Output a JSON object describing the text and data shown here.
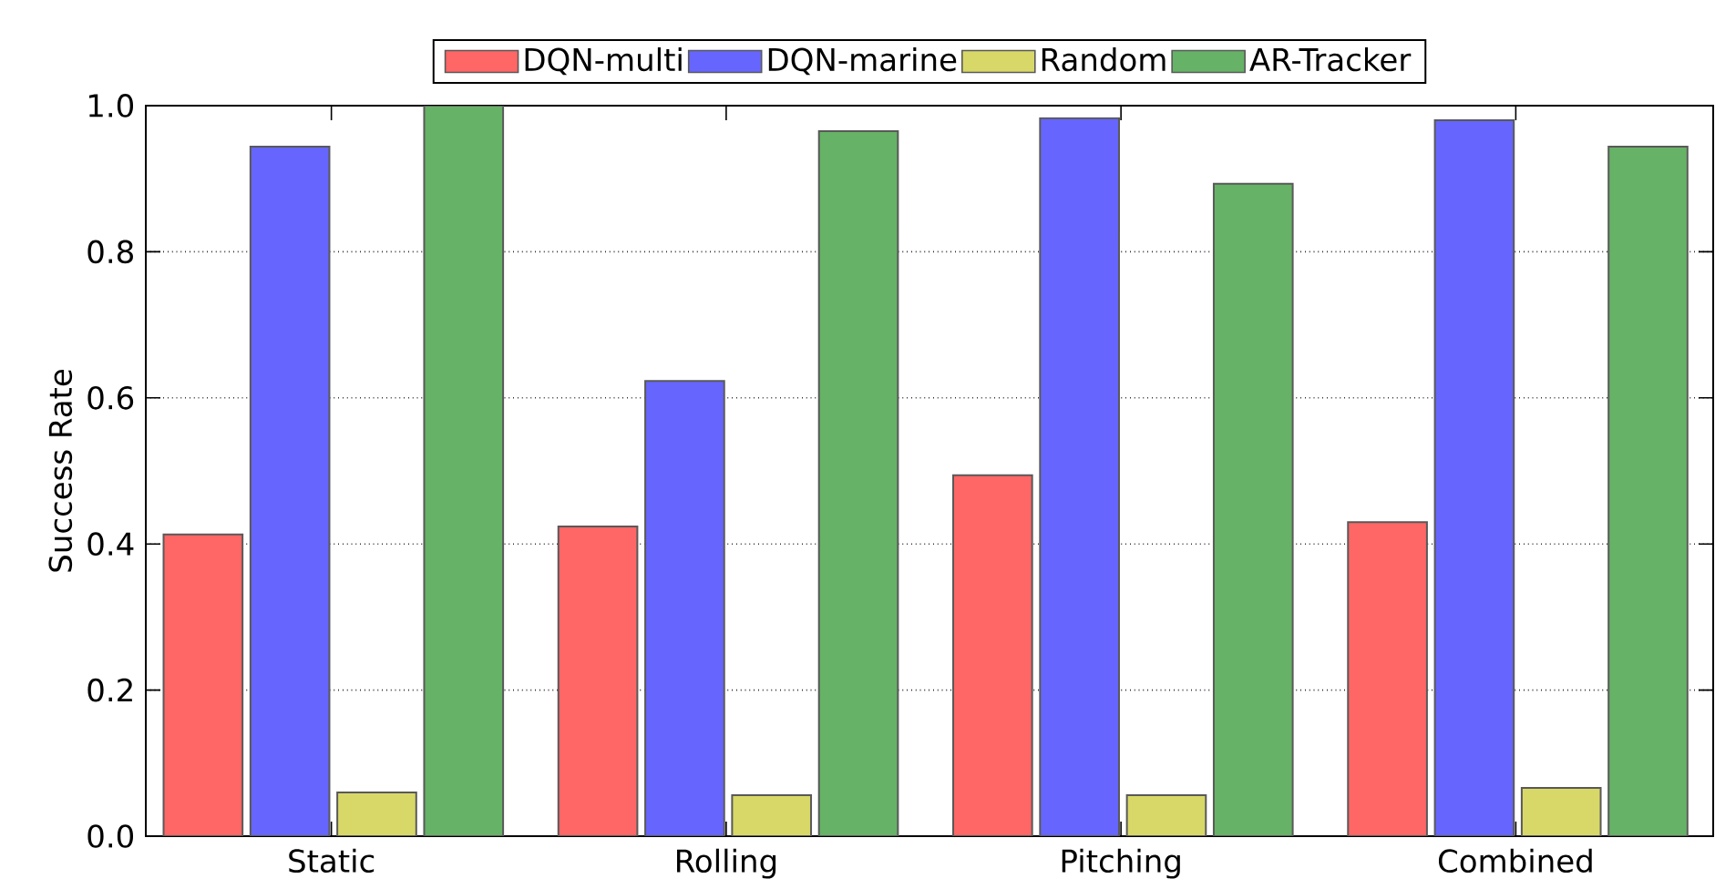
{
  "chart_data": {
    "type": "bar",
    "ylabel": "Success Rate",
    "categories": [
      "Static",
      "Rolling",
      "Pitching",
      "Combined"
    ],
    "series": [
      {
        "name": "DQN-multi",
        "color": "#ff6666",
        "values": [
          0.413,
          0.424,
          0.494,
          0.43
        ]
      },
      {
        "name": "DQN-marine",
        "color": "#6666ff",
        "values": [
          0.944,
          0.623,
          0.983,
          0.98
        ]
      },
      {
        "name": "Random",
        "color": "#d8d868",
        "values": [
          0.06,
          0.056,
          0.056,
          0.066
        ]
      },
      {
        "name": "AR-Tracker",
        "color": "#66b266",
        "values": [
          1.0,
          0.965,
          0.893,
          0.944
        ]
      }
    ],
    "ylim": [
      0,
      1
    ],
    "yticks": [
      {
        "value": 0,
        "label": "0.0"
      },
      0.2,
      0.4,
      0.6,
      0.8,
      {
        "value": 1,
        "label": "1.0"
      }
    ],
    "grid": "y",
    "legend": "top"
  }
}
